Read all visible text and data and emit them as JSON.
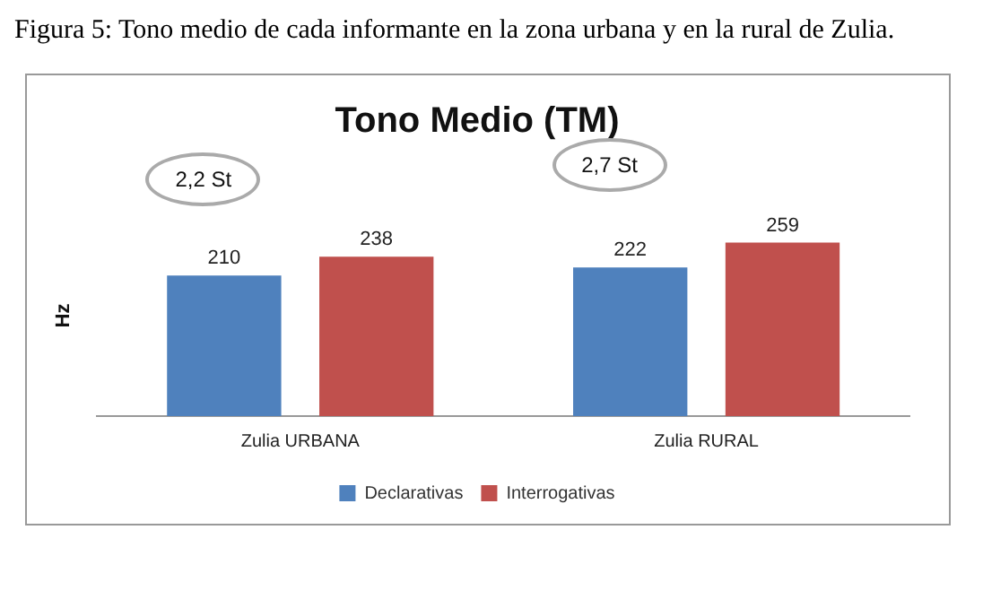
{
  "chart_data": {
    "type": "bar",
    "title": "Tono Medio (TM)",
    "ylabel": "Hz",
    "categories": [
      "Zulia URBANA",
      "Zulia RURAL"
    ],
    "series": [
      {
        "name": "Declarativas",
        "color": "#4f81bd",
        "values": [
          210,
          222
        ]
      },
      {
        "name": "Interrogativas",
        "color": "#c0504d",
        "values": [
          238,
          259
        ]
      }
    ],
    "data_labels": true,
    "legend": "bottom",
    "grid": false,
    "tick_labels": "x",
    "annotations": [
      "Figura 5: Tono medio de cada informante en la zona urbana y en la rural de Zulia.",
      "2,2 St",
      "2,7 St"
    ]
  }
}
